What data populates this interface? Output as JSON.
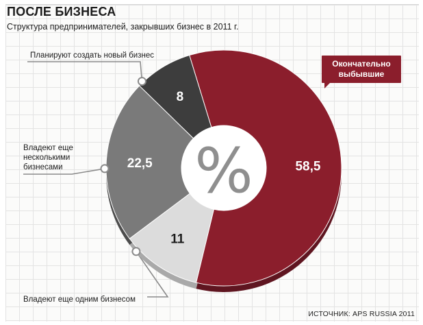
{
  "header": {
    "title": "ПОСЛЕ БИЗНЕСА",
    "subtitle": "Структура предпринимателей, закрывших бизнес в 2011 г."
  },
  "chart_data": {
    "type": "pie",
    "center_label": "%",
    "slices": [
      {
        "label": "Окончательно выбывшие",
        "value": 58.5,
        "display": "58,5",
        "color": "#8b1e2c",
        "side": "#5f1520",
        "text_color": "#ffffff"
      },
      {
        "label": "Владеют еще одним бизнесом",
        "value": 11,
        "display": "11",
        "color": "#dcdcdc",
        "side": "#a9a9a9",
        "text_color": "#1b1b1b"
      },
      {
        "label": "Владеют еще несколькими бизнесами",
        "value": 22.5,
        "display": "22,5",
        "color": "#7a7a7a",
        "side": "#4c4c4c",
        "text_color": "#ffffff"
      },
      {
        "label": "Планируют создать новый бизнес",
        "value": 8,
        "display": "8",
        "color": "#3d3d3d",
        "side": "#222222",
        "text_color": "#ffffff"
      }
    ]
  },
  "callouts": {
    "final": "Окончательно выбывшие",
    "one": "Владеют еще одним бизнесом",
    "several": "Владеют еще несколькими бизнесами",
    "plan": "Планируют создать новый бизнес"
  },
  "footer": {
    "source": "ИСТОЧНИК: APS RUSSIA 2011"
  }
}
